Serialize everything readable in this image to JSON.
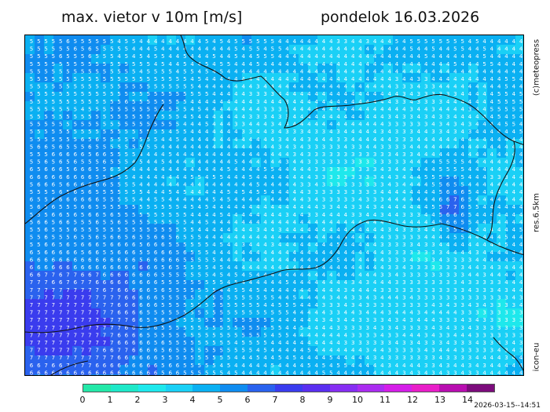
{
  "header": {
    "title": "max. vietor v 10m [m/s]",
    "date": "pondelok 16.03.2026"
  },
  "side_labels": [
    "(c)meteopress",
    "res.6.5km",
    "icon-eu"
  ],
  "timestamp": "2026-03-15--14:51",
  "legend": {
    "ticks": [
      "0",
      "1",
      "2",
      "3",
      "4",
      "5",
      "6",
      "7",
      "8",
      "9",
      "10",
      "11",
      "12",
      "13",
      "14"
    ],
    "colors": [
      "#24e8a8",
      "#1ee8c8",
      "#1ee8ec",
      "#1ad0f6",
      "#0ab0f2",
      "#0f8cf0",
      "#2a62ee",
      "#3a3cee",
      "#5a2ff0",
      "#862ef2",
      "#aa2cf0",
      "#d41ee8",
      "#e81ec8",
      "#b80eb0",
      "#7c0c7c"
    ]
  },
  "map": {
    "sample_values": [
      "3",
      "4",
      "5",
      "6",
      "7"
    ],
    "legend_meaning": "wind gust speed in m/s"
  }
}
